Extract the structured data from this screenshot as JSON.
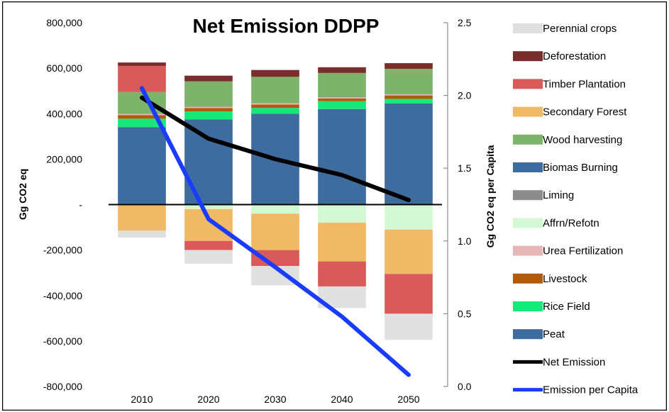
{
  "chart_data": {
    "type": "bar",
    "title": "Net Emission DDPP",
    "xlabel": "",
    "ylabel": "Gg CO2 eq",
    "y2label": "Gg CO2 eq per Capita",
    "categories": [
      "2010",
      "2020",
      "2030",
      "2040",
      "2050"
    ],
    "ylim": [
      -800000,
      800000
    ],
    "y_ticks": [
      800000,
      600000,
      400000,
      200000,
      0,
      -200000,
      -400000,
      -600000,
      -800000
    ],
    "y_tick_labels": [
      "800,000",
      "600,000",
      "400,000",
      "200,000",
      "-",
      "-200,000",
      "-400,000",
      "-600,000",
      "-800,000"
    ],
    "y2lim": [
      0,
      2.5
    ],
    "y2_ticks": [
      2.5,
      2.0,
      1.5,
      1.0,
      0.5,
      0.0
    ],
    "y2_tick_labels": [
      "2.5",
      "2.0",
      "1.5",
      "1.0",
      "0.5",
      "0.0"
    ],
    "stacked": true,
    "series": [
      {
        "name": "Peat",
        "color": "#3e6c9f",
        "values": [
          340000,
          375000,
          400000,
          420000,
          445000
        ]
      },
      {
        "name": "Rice Field",
        "color": "#18e87a",
        "values": [
          38000,
          35000,
          25000,
          35000,
          20000
        ]
      },
      {
        "name": "Livestock",
        "color": "#b05a0a",
        "values": [
          15000,
          15000,
          15000,
          12000,
          15000
        ]
      },
      {
        "name": "Urea Fertilization",
        "color": "#e6b8b8",
        "values": [
          5000,
          5000,
          5000,
          5000,
          5000
        ]
      },
      {
        "name": "Affrn/Refotn",
        "color": "#d4f7d4",
        "values": [
          0,
          -20000,
          -40000,
          -80000,
          -110000
        ]
      },
      {
        "name": "Liming",
        "color": "#8c8c8c",
        "values": [
          2000,
          2000,
          2000,
          2000,
          2000
        ]
      },
      {
        "name": "Biomas Burning",
        "color": "#3e6c9f",
        "values": [
          0,
          0,
          0,
          0,
          0
        ]
      },
      {
        "name": "Wood harvesting",
        "color": "#7db46c",
        "values": [
          95000,
          110000,
          115000,
          105000,
          110000
        ]
      },
      {
        "name": "Secondary Forest",
        "color": "#f0b965",
        "values": [
          -115000,
          -140000,
          -160000,
          -170000,
          -195000
        ]
      },
      {
        "name": "Timber Plantation",
        "color": "#d85a5a",
        "values": [
          115000,
          -40000,
          -70000,
          -110000,
          -175000
        ]
      },
      {
        "name": "Deforestation",
        "color": "#7b2d2d",
        "values": [
          15000,
          25000,
          30000,
          25000,
          25000
        ]
      },
      {
        "name": "Perennial crops",
        "color": "#e0e0e0",
        "values": [
          -30000,
          -60000,
          -85000,
          -95000,
          -115000
        ]
      }
    ],
    "lines": [
      {
        "name": "Net Emission",
        "axis": "left",
        "color": "#000000",
        "values": [
          470000,
          290000,
          200000,
          130000,
          20000
        ]
      },
      {
        "name": "Emission per Capita",
        "axis": "right",
        "color": "#1a3cff",
        "values": [
          2.05,
          1.15,
          0.82,
          0.48,
          0.08
        ]
      }
    ],
    "legend": {
      "position": "right",
      "items": [
        {
          "label": "Perennial crops",
          "type": "swatch",
          "color": "#e0e0e0"
        },
        {
          "label": "Deforestation",
          "type": "swatch",
          "color": "#7b2d2d"
        },
        {
          "label": "Timber Plantation",
          "type": "swatch",
          "color": "#d85a5a"
        },
        {
          "label": "Secondary Forest",
          "type": "swatch",
          "color": "#f0b965"
        },
        {
          "label": "Wood harvesting",
          "type": "swatch",
          "color": "#7db46c"
        },
        {
          "label": "Biomas Burning",
          "type": "swatch",
          "color": "#3e6c9f"
        },
        {
          "label": "Liming",
          "type": "swatch",
          "color": "#8c8c8c"
        },
        {
          "label": "Affrn/Refotn",
          "type": "swatch",
          "color": "#d4f7d4"
        },
        {
          "label": "Urea Fertilization",
          "type": "swatch",
          "color": "#e6b8b8"
        },
        {
          "label": "Livestock",
          "type": "swatch",
          "color": "#b05a0a"
        },
        {
          "label": "Rice Field",
          "type": "swatch",
          "color": "#18e87a"
        },
        {
          "label": "Peat",
          "type": "swatch",
          "color": "#3e6c9f"
        },
        {
          "label": "Net Emission",
          "type": "line",
          "color": "#000000"
        },
        {
          "label": "Emission per Capita",
          "type": "line",
          "color": "#1a3cff"
        }
      ]
    },
    "grid": false
  }
}
